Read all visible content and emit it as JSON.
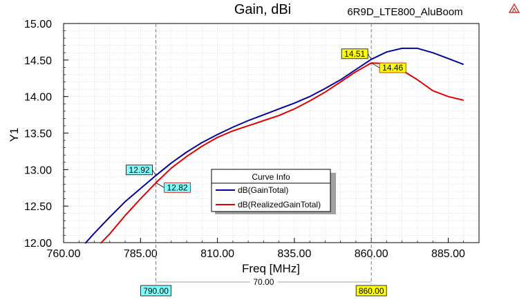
{
  "header": {
    "title": "Gain, dBi",
    "project": "6R9D_LTE800_AluBoom"
  },
  "colors": {
    "gain_total": "#0000a0",
    "realized_gain_total": "#e00000",
    "marker_cyan": "#80ffff",
    "marker_yellow": "#ffff00",
    "grid": "#c8c8c8"
  },
  "icons": {
    "logo": "ansys-logo-icon"
  },
  "chart_data": {
    "type": "line",
    "title": "Gain, dBi",
    "xlabel": "Freq [MHz]",
    "ylabel": "Y1",
    "xlim": [
      760,
      895
    ],
    "ylim": [
      12.0,
      15.0
    ],
    "x_ticks": [
      "760.00",
      "785.00",
      "810.00",
      "835.00",
      "860.00",
      "885.00"
    ],
    "x_tick_values": [
      760,
      785,
      810,
      835,
      860,
      885
    ],
    "y_ticks": [
      "12.00",
      "12.50",
      "13.00",
      "13.50",
      "14.00",
      "14.50",
      "15.00"
    ],
    "y_tick_values": [
      12.0,
      12.5,
      13.0,
      13.5,
      14.0,
      14.5,
      15.0
    ],
    "grid": true,
    "series": [
      {
        "name": "dB(GainTotal)",
        "x": [
          767,
          770,
          775,
          780,
          785,
          790,
          795,
          800,
          805,
          810,
          815,
          820,
          825,
          830,
          835,
          840,
          845,
          850,
          855,
          860,
          865,
          870,
          875,
          880,
          885,
          890
        ],
        "y": [
          11.99,
          12.13,
          12.35,
          12.56,
          12.74,
          12.92,
          13.09,
          13.24,
          13.37,
          13.48,
          13.58,
          13.67,
          13.75,
          13.83,
          13.91,
          14.0,
          14.11,
          14.23,
          14.37,
          14.51,
          14.61,
          14.66,
          14.66,
          14.6,
          14.52,
          14.44
        ]
      },
      {
        "name": "dB(RealizedGainTotal)",
        "x": [
          772,
          775,
          780,
          785,
          790,
          795,
          800,
          805,
          810,
          815,
          820,
          825,
          830,
          835,
          840,
          845,
          850,
          855,
          860,
          865,
          870,
          875,
          880,
          885,
          890
        ],
        "y": [
          11.99,
          12.12,
          12.37,
          12.6,
          12.82,
          13.02,
          13.18,
          13.32,
          13.44,
          13.53,
          13.6,
          13.67,
          13.74,
          13.83,
          13.94,
          14.06,
          14.2,
          14.34,
          14.46,
          14.45,
          14.36,
          14.23,
          14.08,
          14.0,
          13.95
        ]
      }
    ],
    "markers": [
      {
        "x": 790,
        "label": "790.00",
        "values": [
          {
            "series": 0,
            "y": 12.92,
            "label": "12.92",
            "side": "left"
          },
          {
            "series": 1,
            "y": 12.82,
            "label": "12.82",
            "side": "right"
          }
        ]
      },
      {
        "x": 860,
        "label": "860.00",
        "values": [
          {
            "series": 0,
            "y": 14.51,
            "label": "14.51",
            "side": "left"
          },
          {
            "series": 1,
            "y": 14.46,
            "label": "14.46",
            "side": "right"
          }
        ]
      }
    ],
    "delta_label": "70.00",
    "legend": {
      "title": "Curve Info",
      "placement": "center-bottom",
      "entries": [
        "dB(GainTotal)",
        "dB(RealizedGainTotal)"
      ]
    }
  }
}
